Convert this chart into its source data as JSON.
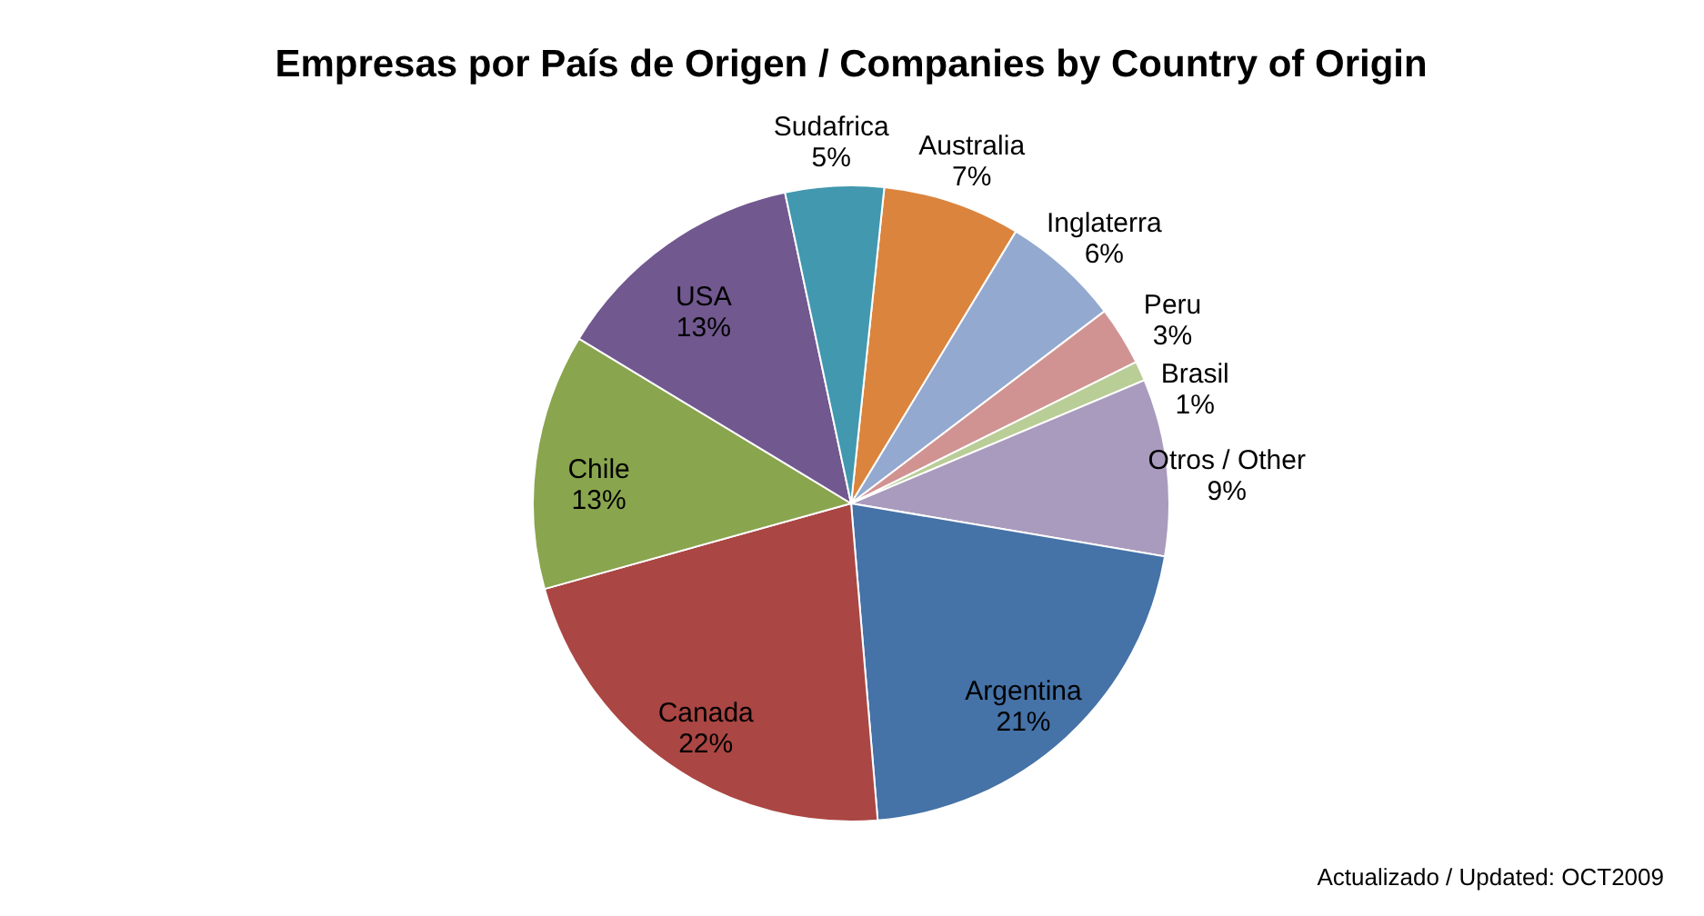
{
  "chart_data": {
    "type": "pie",
    "title": "Empresas por País de Origen / Companies by Country of Origin",
    "categories": [
      "Australia",
      "Inglaterra",
      "Peru",
      "Brasil",
      "Otros / Other",
      "Argentina",
      "Canada",
      "Chile",
      "USA",
      "Sudafrica"
    ],
    "values": [
      7,
      6,
      3,
      1,
      9,
      21,
      22,
      13,
      13,
      5
    ],
    "colors": [
      "#db843d",
      "#93a9cf",
      "#d19392",
      "#b9cd96",
      "#a99bbd",
      "#4572a7",
      "#aa4643",
      "#89a54e",
      "#71588f",
      "#4198af"
    ],
    "value_labels": [
      "7%",
      "6%",
      "3%",
      "1%",
      "9%",
      "21%",
      "22%",
      "13%",
      "13%",
      "5%"
    ],
    "annotations": [
      "Actualizado / Updated: OCT2009"
    ]
  }
}
